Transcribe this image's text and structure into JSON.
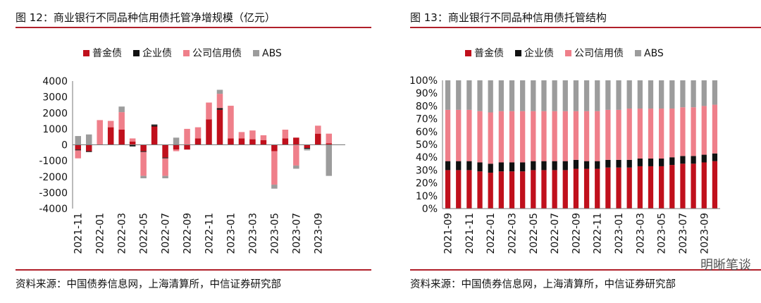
{
  "left": {
    "title": "图 12：商业银行不同品种信用债托管净增规模（亿元）",
    "source": "资料来源：中国债券信息网，上海清算所，中信证券研究部"
  },
  "right": {
    "title": "图 13：商业银行不同品种信用债托管结构",
    "source": "资料来源：中国债券信息网，上海清算所，中信证券研究部"
  },
  "watermark": "明晰笔谈",
  "chart_data": [
    {
      "type": "bar",
      "stacked": true,
      "categories": [
        "2021-11",
        "2021-12",
        "2022-01",
        "2022-02",
        "2022-03",
        "2022-04",
        "2022-05",
        "2022-06",
        "2022-07",
        "2022-08",
        "2022-09",
        "2022-10",
        "2022-11",
        "2022-12",
        "2023-01",
        "2023-02",
        "2023-03",
        "2023-04",
        "2023-05",
        "2023-06",
        "2023-07",
        "2023-08",
        "2023-09",
        "2023-10",
        "2023-11"
      ],
      "tick_labels": [
        "2021-11",
        "",
        "2022-01",
        "",
        "2022-03",
        "",
        "2022-05",
        "",
        "2022-07",
        "",
        "2022-09",
        "",
        "2022-11",
        "",
        "2023-01",
        "",
        "2023-03",
        "",
        "2023-05",
        "",
        "2023-07",
        "",
        "2023-09",
        "",
        ""
      ],
      "series": [
        {
          "name": "普金债",
          "color": "#c0101c",
          "values": [
            -300,
            -400,
            0,
            1100,
            950,
            200,
            -400,
            1150,
            -800,
            -300,
            -300,
            400,
            1600,
            2200,
            400,
            400,
            350,
            300,
            -400,
            400,
            450,
            -200,
            700,
            100,
            0
          ]
        },
        {
          "name": "企业债",
          "color": "#111111",
          "values": [
            -50,
            -50,
            0,
            0,
            0,
            -100,
            -50,
            100,
            -50,
            0,
            0,
            0,
            0,
            100,
            0,
            0,
            0,
            0,
            0,
            0,
            0,
            -50,
            0,
            0,
            0
          ]
        },
        {
          "name": "公司信用债",
          "color": "#ef7f8a",
          "values": [
            -500,
            0,
            1550,
            400,
            1100,
            200,
            -1500,
            0,
            -1100,
            -100,
            1000,
            700,
            1050,
            900,
            2050,
            400,
            550,
            300,
            -2100,
            550,
            -1300,
            0,
            500,
            600,
            0
          ]
        },
        {
          "name": "ABS",
          "color": "#9c9c9c",
          "values": [
            550,
            650,
            0,
            0,
            350,
            0,
            -150,
            50,
            -150,
            450,
            0,
            0,
            0,
            250,
            0,
            0,
            0,
            0,
            -250,
            0,
            -200,
            -100,
            0,
            -1950,
            0
          ]
        }
      ],
      "ylim": [
        -4000,
        4000
      ],
      "yticks": [
        "4000",
        "3000",
        "2000",
        "1000",
        "0",
        "-1000",
        "-2000",
        "-3000",
        "-4000"
      ],
      "legend": "top"
    },
    {
      "type": "bar",
      "stacked": true,
      "percent": true,
      "categories": [
        "2021-09",
        "2021-10",
        "2021-11",
        "2021-12",
        "2022-01",
        "2022-02",
        "2022-03",
        "2022-04",
        "2022-05",
        "2022-06",
        "2022-07",
        "2022-08",
        "2022-09",
        "2022-10",
        "2022-11",
        "2022-12",
        "2023-01",
        "2023-02",
        "2023-03",
        "2023-04",
        "2023-05",
        "2023-06",
        "2023-07",
        "2023-08",
        "2023-09",
        "2023-10"
      ],
      "tick_labels": [
        "2021-09",
        "",
        "2021-11",
        "",
        "2022-01",
        "",
        "2022-03",
        "",
        "2022-05",
        "",
        "2022-07",
        "",
        "2022-09",
        "",
        "2022-11",
        "",
        "2023-01",
        "",
        "2023-03",
        "",
        "2023-05",
        "",
        "2023-07",
        "",
        "2023-09",
        ""
      ],
      "series": [
        {
          "name": "普金债",
          "color": "#c0101c",
          "values": [
            30,
            30,
            30,
            29,
            28,
            29,
            29,
            29,
            30,
            30,
            30,
            30,
            31,
            31,
            31,
            32,
            32,
            32,
            33,
            33,
            33,
            34,
            35,
            35,
            36,
            37
          ]
        },
        {
          "name": "企业债",
          "color": "#111111",
          "values": [
            7,
            7,
            7,
            7,
            7,
            7,
            7,
            7,
            7,
            7,
            7,
            7,
            7,
            6,
            6,
            6,
            6,
            6,
            6,
            6,
            6,
            6,
            6,
            6,
            6,
            6
          ]
        },
        {
          "name": "公司信用债",
          "color": "#ef7f8a",
          "values": [
            40,
            40,
            40,
            40,
            40,
            40,
            40,
            40,
            39,
            39,
            39,
            39,
            38,
            39,
            39,
            39,
            39,
            40,
            39,
            39,
            39,
            38,
            38,
            38,
            38,
            38
          ]
        },
        {
          "name": "ABS",
          "color": "#9c9c9c",
          "values": [
            23,
            23,
            23,
            24,
            25,
            24,
            24,
            24,
            24,
            24,
            24,
            24,
            24,
            24,
            24,
            23,
            23,
            22,
            22,
            22,
            22,
            22,
            21,
            21,
            20,
            19
          ]
        }
      ],
      "ylim": [
        0,
        100
      ],
      "yticks": [
        "100%",
        "90%",
        "80%",
        "70%",
        "60%",
        "50%",
        "40%",
        "30%",
        "20%",
        "10%",
        "0%"
      ],
      "legend": "top"
    }
  ]
}
